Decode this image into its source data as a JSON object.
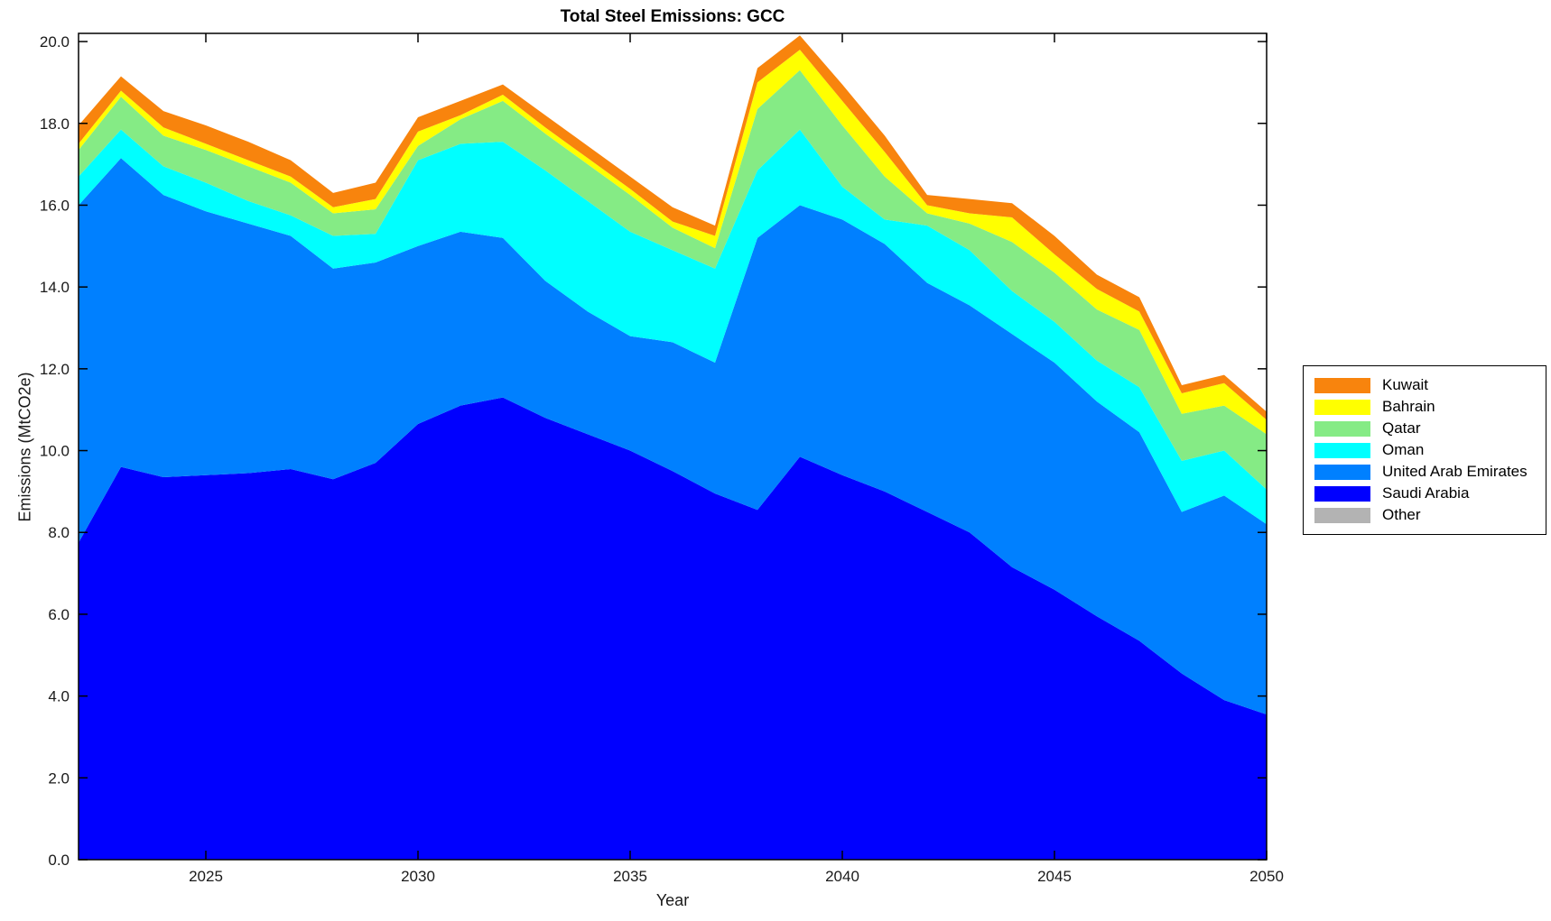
{
  "chart_data": {
    "type": "area",
    "stacked": true,
    "title": "Total Steel Emissions: GCC",
    "xlabel": "Year",
    "ylabel": "Emissions (MtCO2e)",
    "x": [
      2022,
      2023,
      2024,
      2025,
      2026,
      2027,
      2028,
      2029,
      2030,
      2031,
      2032,
      2033,
      2034,
      2035,
      2036,
      2037,
      2038,
      2039,
      2040,
      2041,
      2042,
      2043,
      2044,
      2045,
      2046,
      2047,
      2048,
      2049,
      2050
    ],
    "series": [
      {
        "name": "Other",
        "color": "#b3b3b3",
        "values": [
          0,
          0,
          0,
          0,
          0,
          0,
          0,
          0,
          0,
          0,
          0,
          0,
          0,
          0,
          0,
          0,
          0,
          0,
          0,
          0,
          0,
          0,
          0,
          0,
          0,
          0,
          0,
          0,
          0
        ]
      },
      {
        "name": "Saudi Arabia",
        "color": "#0000ff",
        "values": [
          7.75,
          9.6,
          9.35,
          9.4,
          9.45,
          9.55,
          9.3,
          9.7,
          10.65,
          11.1,
          11.3,
          10.8,
          10.4,
          10.0,
          9.5,
          8.95,
          8.55,
          9.85,
          9.4,
          9.0,
          8.5,
          8.0,
          7.15,
          6.6,
          5.95,
          5.35,
          4.55,
          3.9,
          3.55
        ]
      },
      {
        "name": "United Arab Emirates",
        "color": "#0080ff",
        "values": [
          8.25,
          7.55,
          6.9,
          6.45,
          6.1,
          5.7,
          5.15,
          4.9,
          4.35,
          4.25,
          3.9,
          3.35,
          3.0,
          2.8,
          3.15,
          3.2,
          6.65,
          6.15,
          6.25,
          6.05,
          5.6,
          5.55,
          5.7,
          5.55,
          5.25,
          5.1,
          3.95,
          5.0,
          4.65
        ]
      },
      {
        "name": "Oman",
        "color": "#00ffff",
        "values": [
          0.7,
          0.7,
          0.7,
          0.7,
          0.55,
          0.5,
          0.8,
          0.7,
          2.1,
          2.15,
          2.35,
          2.7,
          2.7,
          2.55,
          2.25,
          2.3,
          1.65,
          1.85,
          0.8,
          0.6,
          1.4,
          1.35,
          1.05,
          1.0,
          1.0,
          1.1,
          1.25,
          1.1,
          0.85
        ]
      },
      {
        "name": "Qatar",
        "color": "#85eb85",
        "values": [
          0.65,
          0.8,
          0.75,
          0.8,
          0.85,
          0.8,
          0.55,
          0.6,
          0.35,
          0.6,
          1.0,
          0.9,
          0.9,
          0.9,
          0.55,
          0.5,
          1.5,
          1.45,
          1.5,
          1.05,
          0.3,
          0.65,
          1.2,
          1.2,
          1.25,
          1.4,
          1.15,
          1.1,
          1.35
        ]
      },
      {
        "name": "Bahrain",
        "color": "#ffff00",
        "values": [
          0.15,
          0.15,
          0.2,
          0.15,
          0.15,
          0.15,
          0.15,
          0.25,
          0.35,
          0.1,
          0.15,
          0.15,
          0.15,
          0.15,
          0.15,
          0.3,
          0.65,
          0.5,
          0.6,
          0.6,
          0.2,
          0.25,
          0.6,
          0.45,
          0.5,
          0.45,
          0.5,
          0.55,
          0.35
        ]
      },
      {
        "name": "Kuwait",
        "color": "#f8840d",
        "values": [
          0.45,
          0.35,
          0.4,
          0.45,
          0.45,
          0.4,
          0.35,
          0.4,
          0.35,
          0.35,
          0.25,
          0.3,
          0.3,
          0.3,
          0.35,
          0.25,
          0.35,
          0.35,
          0.4,
          0.4,
          0.25,
          0.35,
          0.35,
          0.45,
          0.35,
          0.35,
          0.2,
          0.2,
          0.2
        ]
      }
    ],
    "legend_order": [
      "Kuwait",
      "Bahrain",
      "Qatar",
      "Oman",
      "United Arab Emirates",
      "Saudi Arabia",
      "Other"
    ],
    "legend_position": "right-outside",
    "xlim": [
      2022,
      2050
    ],
    "ylim": [
      0,
      20.2
    ],
    "xticks": [
      2025,
      2030,
      2035,
      2040,
      2045,
      2050
    ],
    "yticks": [
      0,
      2,
      4,
      6,
      8,
      10,
      12,
      14,
      16,
      18,
      20
    ],
    "ytick_decimals": 1,
    "grid": false,
    "box": true,
    "tick_direction": "in"
  }
}
